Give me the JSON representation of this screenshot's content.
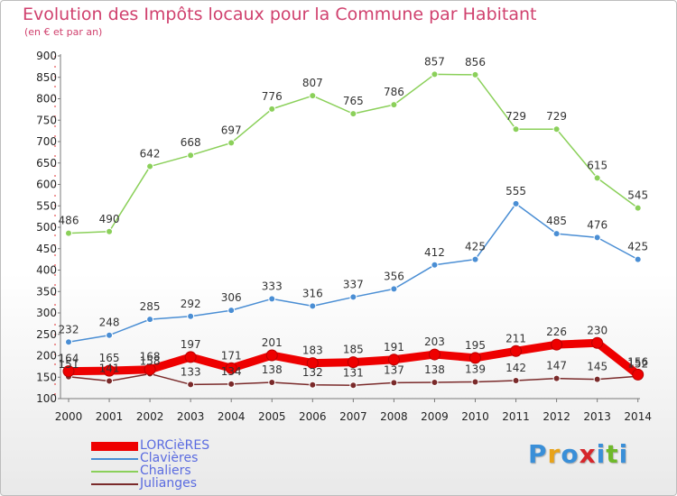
{
  "header": {
    "title": "Evolution des Impôts locaux pour la Commune par Habitant",
    "subtitle": "(en € et par an)"
  },
  "logo": {
    "text": "Proxiti",
    "colors": [
      "#3a8fd8",
      "#e8a31a",
      "#3a8fd8",
      "#d6262b",
      "#3a8fd8",
      "#6fb92a",
      "#3a8fd8"
    ]
  },
  "chart_data": {
    "type": "line",
    "x": [
      2000,
      2001,
      2002,
      2003,
      2004,
      2005,
      2006,
      2007,
      2008,
      2009,
      2010,
      2011,
      2012,
      2013,
      2014
    ],
    "ylim": [
      100,
      900
    ],
    "yticks": [
      100,
      150,
      200,
      250,
      300,
      350,
      400,
      450,
      500,
      550,
      600,
      650,
      700,
      750,
      800,
      850,
      900
    ],
    "grid": false,
    "legend_position": "bottom-left",
    "series": [
      {
        "name": "LORCièRES",
        "color": "#ee0000",
        "emphasis": true,
        "values": [
          164,
          165,
          168,
          197,
          171,
          201,
          183,
          185,
          191,
          203,
          195,
          211,
          226,
          230,
          156
        ]
      },
      {
        "name": "Clavières",
        "color": "#4a8ed4",
        "emphasis": false,
        "values": [
          232,
          248,
          285,
          292,
          306,
          333,
          316,
          337,
          356,
          412,
          425,
          555,
          485,
          476,
          425
        ]
      },
      {
        "name": "Chaliers",
        "color": "#8bd05a",
        "emphasis": false,
        "values": [
          486,
          490,
          642,
          668,
          697,
          776,
          807,
          765,
          786,
          857,
          856,
          729,
          729,
          615,
          545
        ]
      },
      {
        "name": "Julianges",
        "color": "#7a2a2a",
        "emphasis": false,
        "values": [
          151,
          141,
          158,
          133,
          134,
          138,
          132,
          131,
          137,
          138,
          139,
          142,
          147,
          145,
          152
        ]
      }
    ]
  }
}
